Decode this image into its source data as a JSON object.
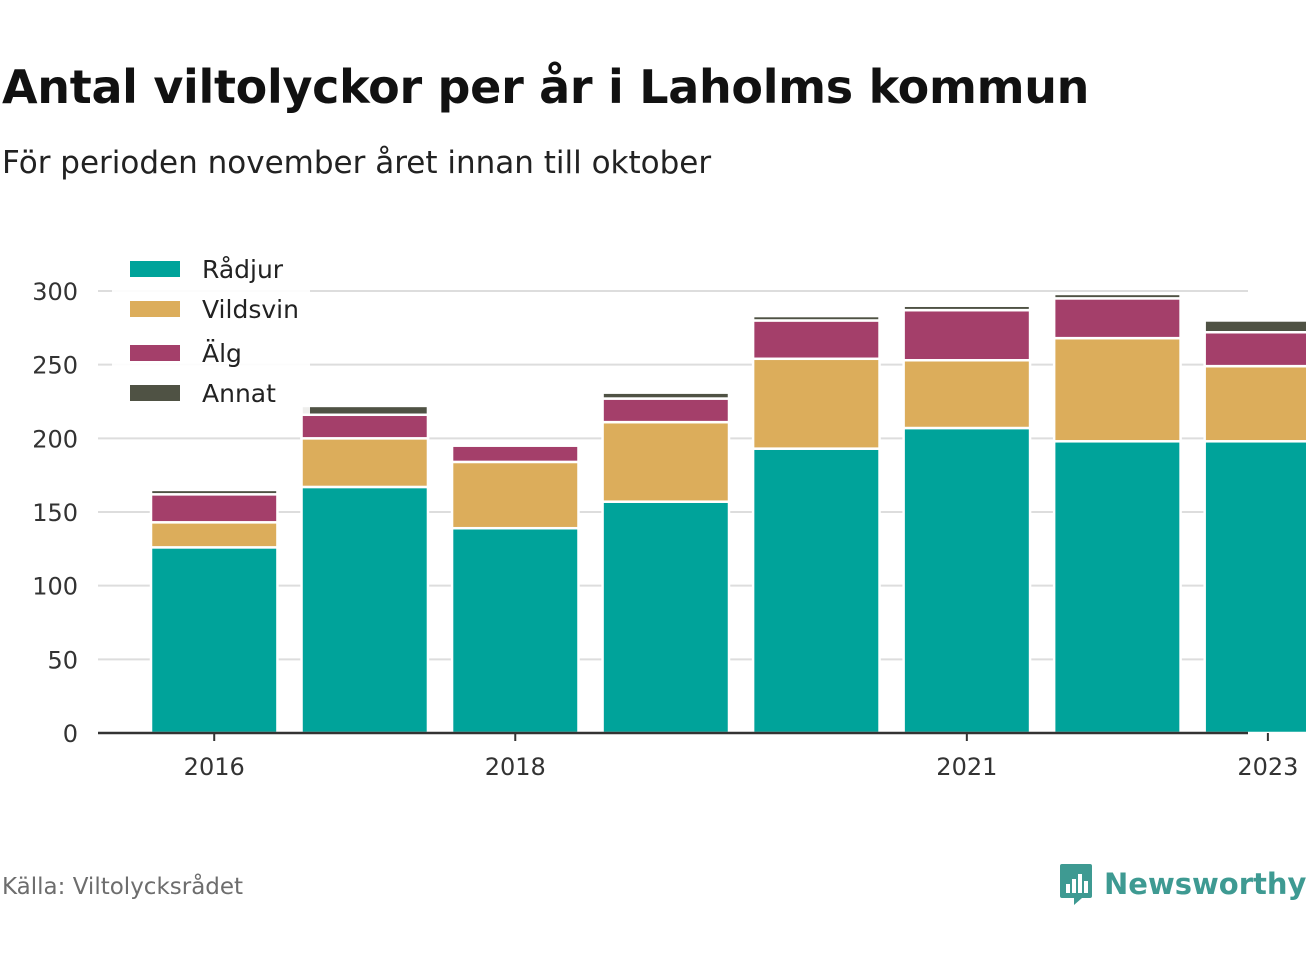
{
  "header": {
    "title": "Antal viltolyckor per år i Laholms kommun",
    "subtitle": "För perioden november året innan till oktober"
  },
  "footer": {
    "source": "Källa: Viltolycksrådet",
    "brand": "Newsworthy",
    "brand_icon": "bar-chart-speech-bubble-icon"
  },
  "chart_data": {
    "type": "bar",
    "stacked": true,
    "categories": [
      "2016",
      "2017",
      "2018",
      "2019",
      "2020",
      "2021",
      "2022",
      "2023"
    ],
    "x_tick_labels": [
      "2016",
      "",
      "2018",
      "",
      "",
      "2021",
      "",
      "2023"
    ],
    "series": [
      {
        "name": "Rådjur",
        "color": "#00a39a",
        "values": [
          126,
          167,
          139,
          157,
          193,
          207,
          198,
          198
        ]
      },
      {
        "name": "Vildsvin",
        "color": "#dcad5b",
        "values": [
          17,
          33,
          45,
          54,
          61,
          46,
          70,
          51
        ]
      },
      {
        "name": "Älg",
        "color": "#a43f6a",
        "values": [
          19,
          16,
          11,
          16,
          26,
          34,
          27,
          23
        ]
      },
      {
        "name": "Annat",
        "color": "#4f5244",
        "values": [
          3,
          6,
          0,
          4,
          3,
          3,
          3,
          8
        ]
      }
    ],
    "y_ticks": [
      0,
      50,
      100,
      150,
      200,
      250,
      300
    ],
    "ylim": [
      0,
      300
    ],
    "grid": true,
    "legend": "top-left"
  }
}
